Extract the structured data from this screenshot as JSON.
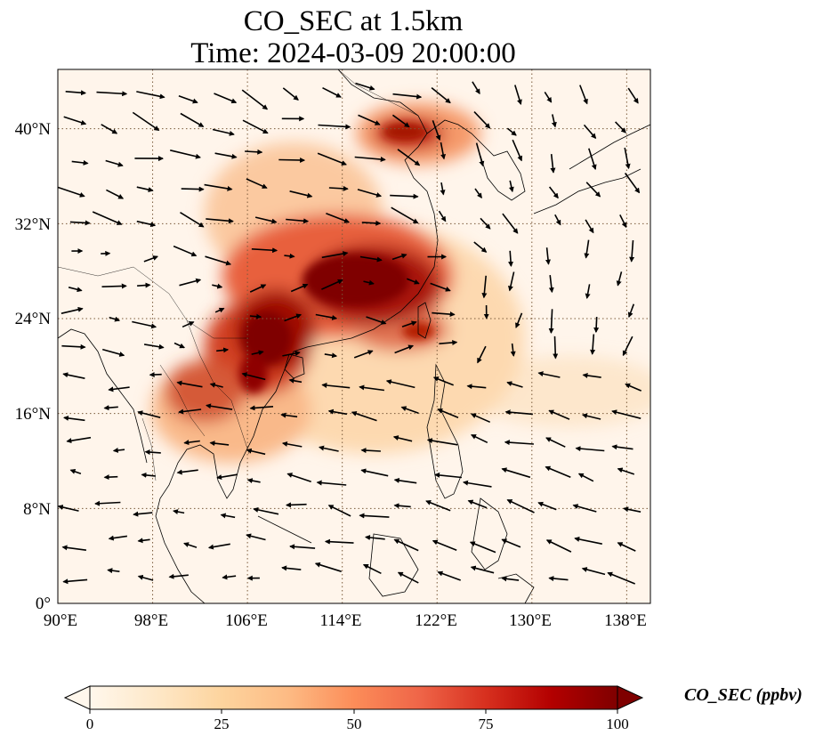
{
  "map": {
    "title_line1": "CO_SEC at 1.5km",
    "title_line2": "Time: 2024-03-09 20:00:00",
    "projection": "PlateCarree",
    "extent": {
      "lon_min": 90,
      "lon_max": 140,
      "lat_min": 0,
      "lat_max": 45
    },
    "lon_ticks": [
      90,
      98,
      106,
      114,
      122,
      130,
      138
    ],
    "lon_tick_labels": [
      "90°E",
      "98°E",
      "106°E",
      "114°E",
      "122°E",
      "130°E",
      "138°E"
    ],
    "lat_ticks": [
      0,
      8,
      16,
      24,
      32,
      40
    ],
    "lat_tick_labels": [
      "0°",
      "8°N",
      "16°N",
      "24°N",
      "32°N",
      "40°N"
    ],
    "gridlines": "dotted",
    "colormap": "OrRd",
    "wind_vectors": true
  },
  "colorbar": {
    "label": "CO_SEC (ppbv)",
    "min": 0,
    "max": 100,
    "ticks": [
      0,
      25,
      50,
      75,
      100
    ],
    "tick_labels": [
      "0",
      "25",
      "50",
      "75",
      "100"
    ],
    "extend": "both",
    "colors": [
      "#fff7ec",
      "#fee8c8",
      "#fdd49e",
      "#fdbb84",
      "#fc8d59",
      "#ef6548",
      "#d7301f",
      "#b30000",
      "#7f0000"
    ]
  }
}
